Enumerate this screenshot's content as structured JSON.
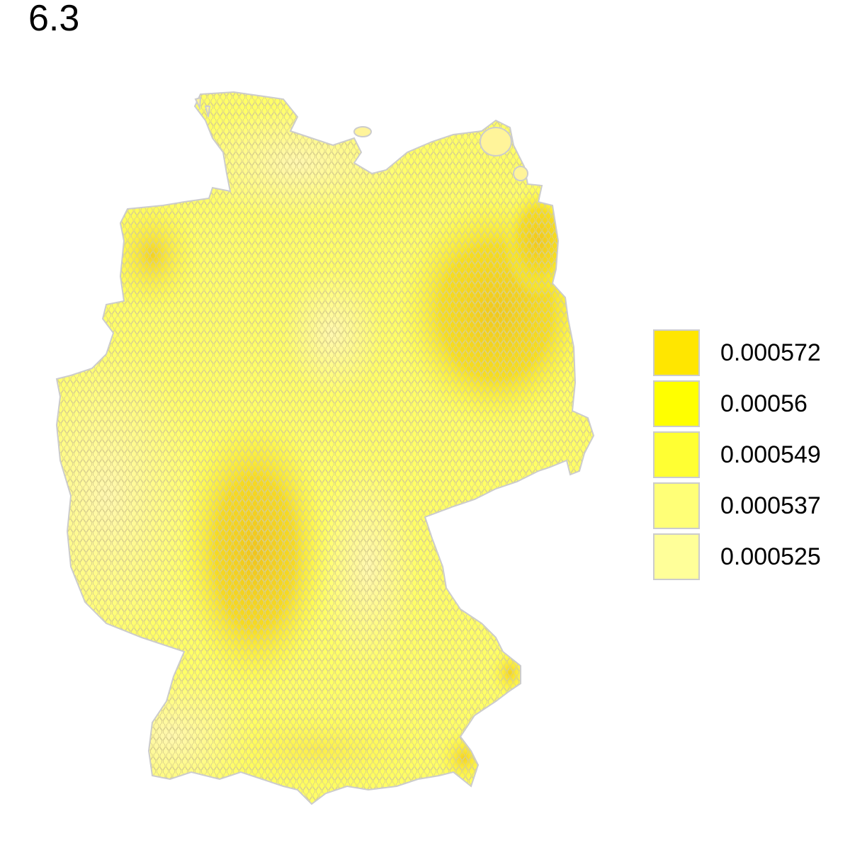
{
  "title": "6.3",
  "map": {
    "region": "Germany",
    "style": "hexagonal-grid",
    "border_color": "#cccccc",
    "cell_stroke": "#d9c98a"
  },
  "legend": {
    "items": [
      {
        "label": "0.000572",
        "color": "#ffe600"
      },
      {
        "label": "0.00056",
        "color": "#ffff00"
      },
      {
        "label": "0.000549",
        "color": "#ffff33"
      },
      {
        "label": "0.000537",
        "color": "#ffff77"
      },
      {
        "label": "0.000525",
        "color": "#ffff99"
      }
    ]
  }
}
